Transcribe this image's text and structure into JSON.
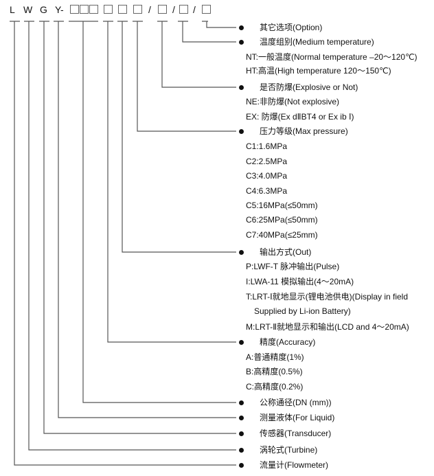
{
  "model_code": {
    "parts": [
      "L",
      "W",
      "G",
      "Y-"
    ],
    "slash": "/"
  },
  "rows": [
    {
      "type": "head",
      "text": "其它选项(Option)"
    },
    {
      "type": "head",
      "text": "温度组别(Medium temperature)"
    },
    {
      "type": "sub",
      "text": "NT:一般温度(Normal temperature –20～120℃)"
    },
    {
      "type": "sub",
      "text": "HT:高温(High temperature 120～150℃)"
    },
    {
      "type": "head",
      "text": "是否防爆(Explosive or Not)"
    },
    {
      "type": "sub",
      "text": "NE:非防爆(Not explosive)"
    },
    {
      "type": "sub",
      "text": "EX: 防爆(Ex dⅡBT4 or Ex ib Ⅰ)"
    },
    {
      "type": "head",
      "text": "压力等级(Max pressure)"
    },
    {
      "type": "sub",
      "text": "C1:1.6MPa"
    },
    {
      "type": "sub",
      "text": "C2:2.5MPa"
    },
    {
      "type": "sub",
      "text": "C3:4.0MPa"
    },
    {
      "type": "sub",
      "text": "C4:6.3MPa"
    },
    {
      "type": "sub",
      "text": "C5:16MPa(≤50mm)"
    },
    {
      "type": "sub",
      "text": "C6:25MPa(≤50mm)"
    },
    {
      "type": "sub",
      "text": "C7:40MPa(≤25mm)"
    },
    {
      "type": "head",
      "text": "输出方式(Out)"
    },
    {
      "type": "sub",
      "text": "P:LWF-T 脉冲输出(Pulse)"
    },
    {
      "type": "sub",
      "text": "I:LWA-11 模拟输出(4～20mA)"
    },
    {
      "type": "sub",
      "text": "T:LRT-Ⅰ就地显示(锂电池供电)(Display in field"
    },
    {
      "type": "sub2",
      "text": "Supplied by Li-ion Battery)"
    },
    {
      "type": "sub",
      "text": "M:LRT-Ⅱ就地显示和输出(LCD and 4～20mA)"
    },
    {
      "type": "head",
      "text": "精度(Accuracy)"
    },
    {
      "type": "sub",
      "text": "A:普通精度(1%)"
    },
    {
      "type": "sub",
      "text": "B:高精度(0.5%)"
    },
    {
      "type": "sub",
      "text": "C:高精度(0.2%)"
    },
    {
      "type": "head",
      "text": "公称通径(DN (mm))"
    },
    {
      "type": "head",
      "text": "测量液体(For Liquid)"
    },
    {
      "type": "head",
      "text": "传感器(Transducer)"
    },
    {
      "type": "head",
      "text": "涡轮式(Turbine)"
    },
    {
      "type": "head",
      "text": "流量计(Flowmeter)"
    }
  ],
  "colors": {
    "line": "#555555",
    "text": "#111111"
  }
}
